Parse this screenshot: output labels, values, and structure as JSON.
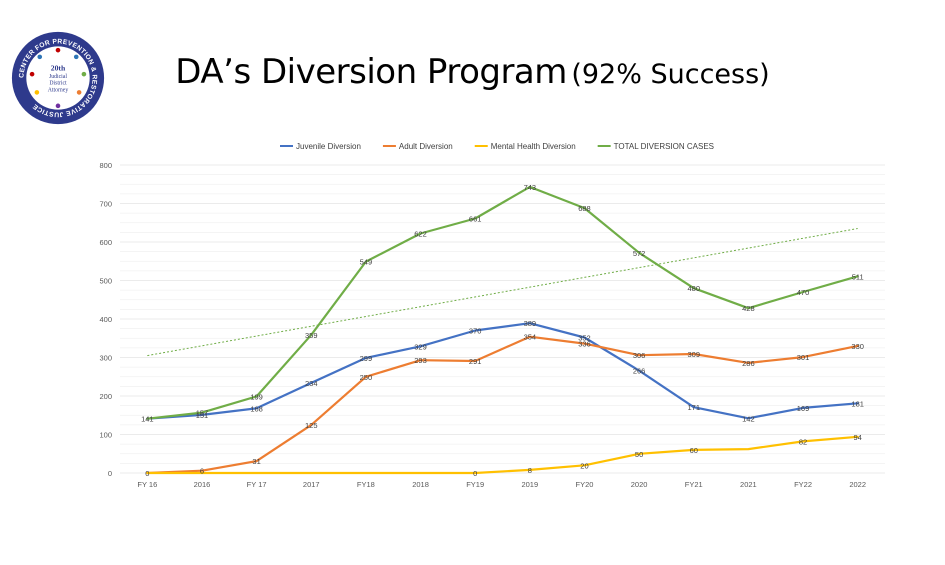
{
  "slide": {
    "title_main": "DA’s Diversion Program",
    "title_sub": "(92% Success)",
    "logo": {
      "arc_text_top": "CENTER FOR PREVENTION & RESTORATIVE JUSTICE",
      "center_line1": "20th",
      "center_line2": "Judicial",
      "center_line3": "District",
      "center_line4": "Attorney"
    }
  },
  "chart_data": {
    "type": "line",
    "title": "",
    "xlabel": "",
    "ylabel": "",
    "ylim": [
      0,
      800
    ],
    "yticks": [
      0,
      100,
      200,
      300,
      400,
      500,
      600,
      700,
      800
    ],
    "grid": true,
    "legend_position": "top",
    "categories": [
      "FY 16",
      "2016",
      "FY 17",
      "2017",
      "FY18",
      "2018",
      "FY19",
      "2019",
      "FY20",
      "2020",
      "FY21",
      "2021",
      "FY22",
      "2022"
    ],
    "series": [
      {
        "name": "Juvenile Diversion",
        "color": "#4472C4",
        "values": [
          141,
          151,
          168,
          234,
          299,
          329,
          370,
          389,
          352,
          266,
          171,
          142,
          169,
          181
        ],
        "labels": [
          "",
          "151",
          "168",
          "234",
          "299",
          "329",
          "370",
          "389",
          "352",
          "266",
          "171",
          "142",
          "169",
          "181"
        ]
      },
      {
        "name": "Adult Diversion",
        "color": "#ED7D31",
        "values": [
          0,
          6,
          31,
          125,
          250,
          293,
          291,
          354,
          336,
          306,
          309,
          286,
          301,
          330
        ],
        "labels": [
          "",
          "6",
          "31",
          "125",
          "250",
          "293",
          "291",
          "354",
          "336",
          "306",
          "309",
          "286",
          "301",
          "330"
        ]
      },
      {
        "name": "Mental Health Diversion",
        "color": "#FFC000",
        "values": [
          0,
          0,
          0,
          0,
          0,
          0,
          0,
          8,
          20,
          50,
          60,
          62,
          82,
          94
        ],
        "labels": [
          "0",
          "",
          "",
          "",
          "",
          "",
          "0",
          "8",
          "20",
          "50",
          "60",
          "",
          "82",
          "94"
        ]
      },
      {
        "name": "TOTAL DIVERSION CASES",
        "color": "#70AD47",
        "values": [
          141,
          157,
          199,
          359,
          549,
          622,
          661,
          743,
          688,
          572,
          480,
          428,
          470,
          511
        ],
        "labels": [
          "141",
          "157",
          "199",
          "359",
          "549",
          "622",
          "661",
          "743",
          "688",
          "572",
          "480",
          "428",
          "470",
          "511"
        ]
      }
    ],
    "trendline": {
      "series": "TOTAL DIVERSION CASES",
      "color": "#70AD47",
      "style": "dotted",
      "start": 305,
      "end": 635
    }
  }
}
